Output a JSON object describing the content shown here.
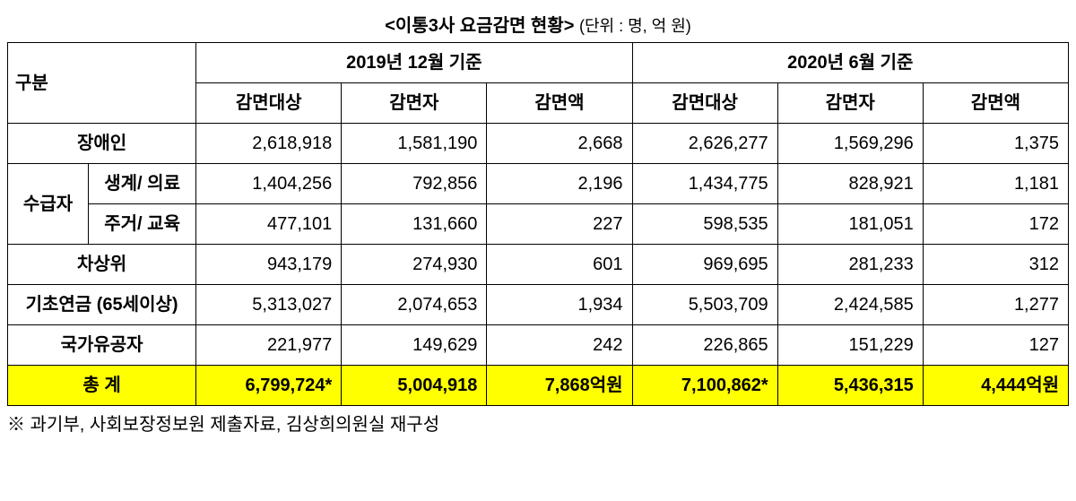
{
  "title": {
    "main": "<이통3사 요금감면 현황>",
    "unit": "(단위 : 명, 억 원)"
  },
  "header": {
    "gubun": "구분",
    "period1": "2019년 12월 기준",
    "period2": "2020년 6월 기준",
    "cols": {
      "target": "감면대상",
      "person": "감면자",
      "amount": "감면액"
    }
  },
  "rows": {
    "disabled": {
      "label": "장애인",
      "p1": {
        "target": "2,618,918",
        "person": "1,581,190",
        "amount": "2,668"
      },
      "p2": {
        "target": "2,626,277",
        "person": "1,569,296",
        "amount": "1,375"
      }
    },
    "recipient_group": "수급자",
    "recipient_life": {
      "label": "생계/\n의료",
      "p1": {
        "target": "1,404,256",
        "person": "792,856",
        "amount": "2,196"
      },
      "p2": {
        "target": "1,434,775",
        "person": "828,921",
        "amount": "1,181"
      }
    },
    "recipient_housing": {
      "label": "주거/\n교육",
      "p1": {
        "target": "477,101",
        "person": "131,660",
        "amount": "227"
      },
      "p2": {
        "target": "598,535",
        "person": "181,051",
        "amount": "172"
      }
    },
    "near_poor": {
      "label": "차상위",
      "p1": {
        "target": "943,179",
        "person": "274,930",
        "amount": "601"
      },
      "p2": {
        "target": "969,695",
        "person": "281,233",
        "amount": "312"
      }
    },
    "basic_pension": {
      "label": "기초연금\n(65세이상)",
      "p1": {
        "target": "5,313,027",
        "person": "2,074,653",
        "amount": "1,934"
      },
      "p2": {
        "target": "5,503,709",
        "person": "2,424,585",
        "amount": "1,277"
      }
    },
    "merit": {
      "label": "국가유공자",
      "p1": {
        "target": "221,977",
        "person": "149,629",
        "amount": "242"
      },
      "p2": {
        "target": "226,865",
        "person": "151,229",
        "amount": "127"
      }
    },
    "total": {
      "label": "총 계",
      "p1": {
        "target": "6,799,724*",
        "person": "5,004,918",
        "amount": "7,868억원"
      },
      "p2": {
        "target": "7,100,862*",
        "person": "5,436,315",
        "amount": "4,444억원"
      }
    }
  },
  "footnote": "※ 과기부, 사회보장정보원 제출자료, 김상희의원실 재구성",
  "colors": {
    "highlight": "#ffff00",
    "border": "#000000",
    "text": "#000000",
    "background": "#ffffff"
  }
}
